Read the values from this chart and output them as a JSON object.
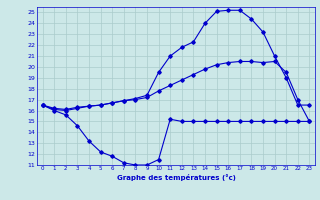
{
  "title": "Graphe des températures (°c)",
  "bg_color": "#cce8e8",
  "grid_color": "#aacccc",
  "line_color": "#0000cc",
  "xlim": [
    -0.5,
    23.5
  ],
  "ylim": [
    11,
    25.5
  ],
  "yticks": [
    11,
    12,
    13,
    14,
    15,
    16,
    17,
    18,
    19,
    20,
    21,
    22,
    23,
    24,
    25
  ],
  "xticks": [
    0,
    1,
    2,
    3,
    4,
    5,
    6,
    7,
    8,
    9,
    10,
    11,
    12,
    13,
    14,
    15,
    16,
    17,
    18,
    19,
    20,
    21,
    22,
    23
  ],
  "curve1_x": [
    0,
    1,
    2,
    3,
    4,
    5,
    6,
    7,
    8,
    9,
    10,
    11,
    12,
    13,
    14,
    15,
    16,
    17,
    18,
    19,
    20,
    21,
    22,
    23
  ],
  "curve1_y": [
    16.5,
    16.1,
    16.0,
    16.2,
    16.4,
    16.5,
    16.7,
    16.9,
    17.1,
    17.4,
    19.5,
    21.0,
    21.8,
    22.3,
    24.0,
    25.1,
    25.2,
    25.2,
    24.4,
    23.2,
    21.0,
    19.0,
    16.5,
    16.5
  ],
  "curve2_x": [
    0,
    1,
    2,
    3,
    4,
    5,
    6,
    7,
    8,
    9,
    10,
    11,
    12,
    13,
    14,
    15,
    16,
    17,
    18,
    19,
    20,
    21,
    22,
    23
  ],
  "curve2_y": [
    16.5,
    16.2,
    16.1,
    16.3,
    16.4,
    16.5,
    16.7,
    16.9,
    17.0,
    17.2,
    17.8,
    18.3,
    18.8,
    19.3,
    19.8,
    20.2,
    20.4,
    20.5,
    20.5,
    20.4,
    20.5,
    19.5,
    17.0,
    15.0
  ],
  "curve3_x": [
    0,
    1,
    2,
    3,
    4,
    5,
    6,
    7,
    8,
    9,
    10,
    11,
    12,
    13,
    14,
    15,
    16,
    17,
    18,
    19,
    20,
    21,
    22,
    23
  ],
  "curve3_y": [
    16.5,
    16.0,
    15.6,
    14.6,
    13.2,
    12.2,
    11.8,
    11.2,
    11.0,
    11.0,
    11.5,
    15.2,
    15.0,
    15.0,
    15.0,
    15.0,
    15.0,
    15.0,
    15.0,
    15.0,
    15.0,
    15.0,
    15.0,
    15.0
  ]
}
